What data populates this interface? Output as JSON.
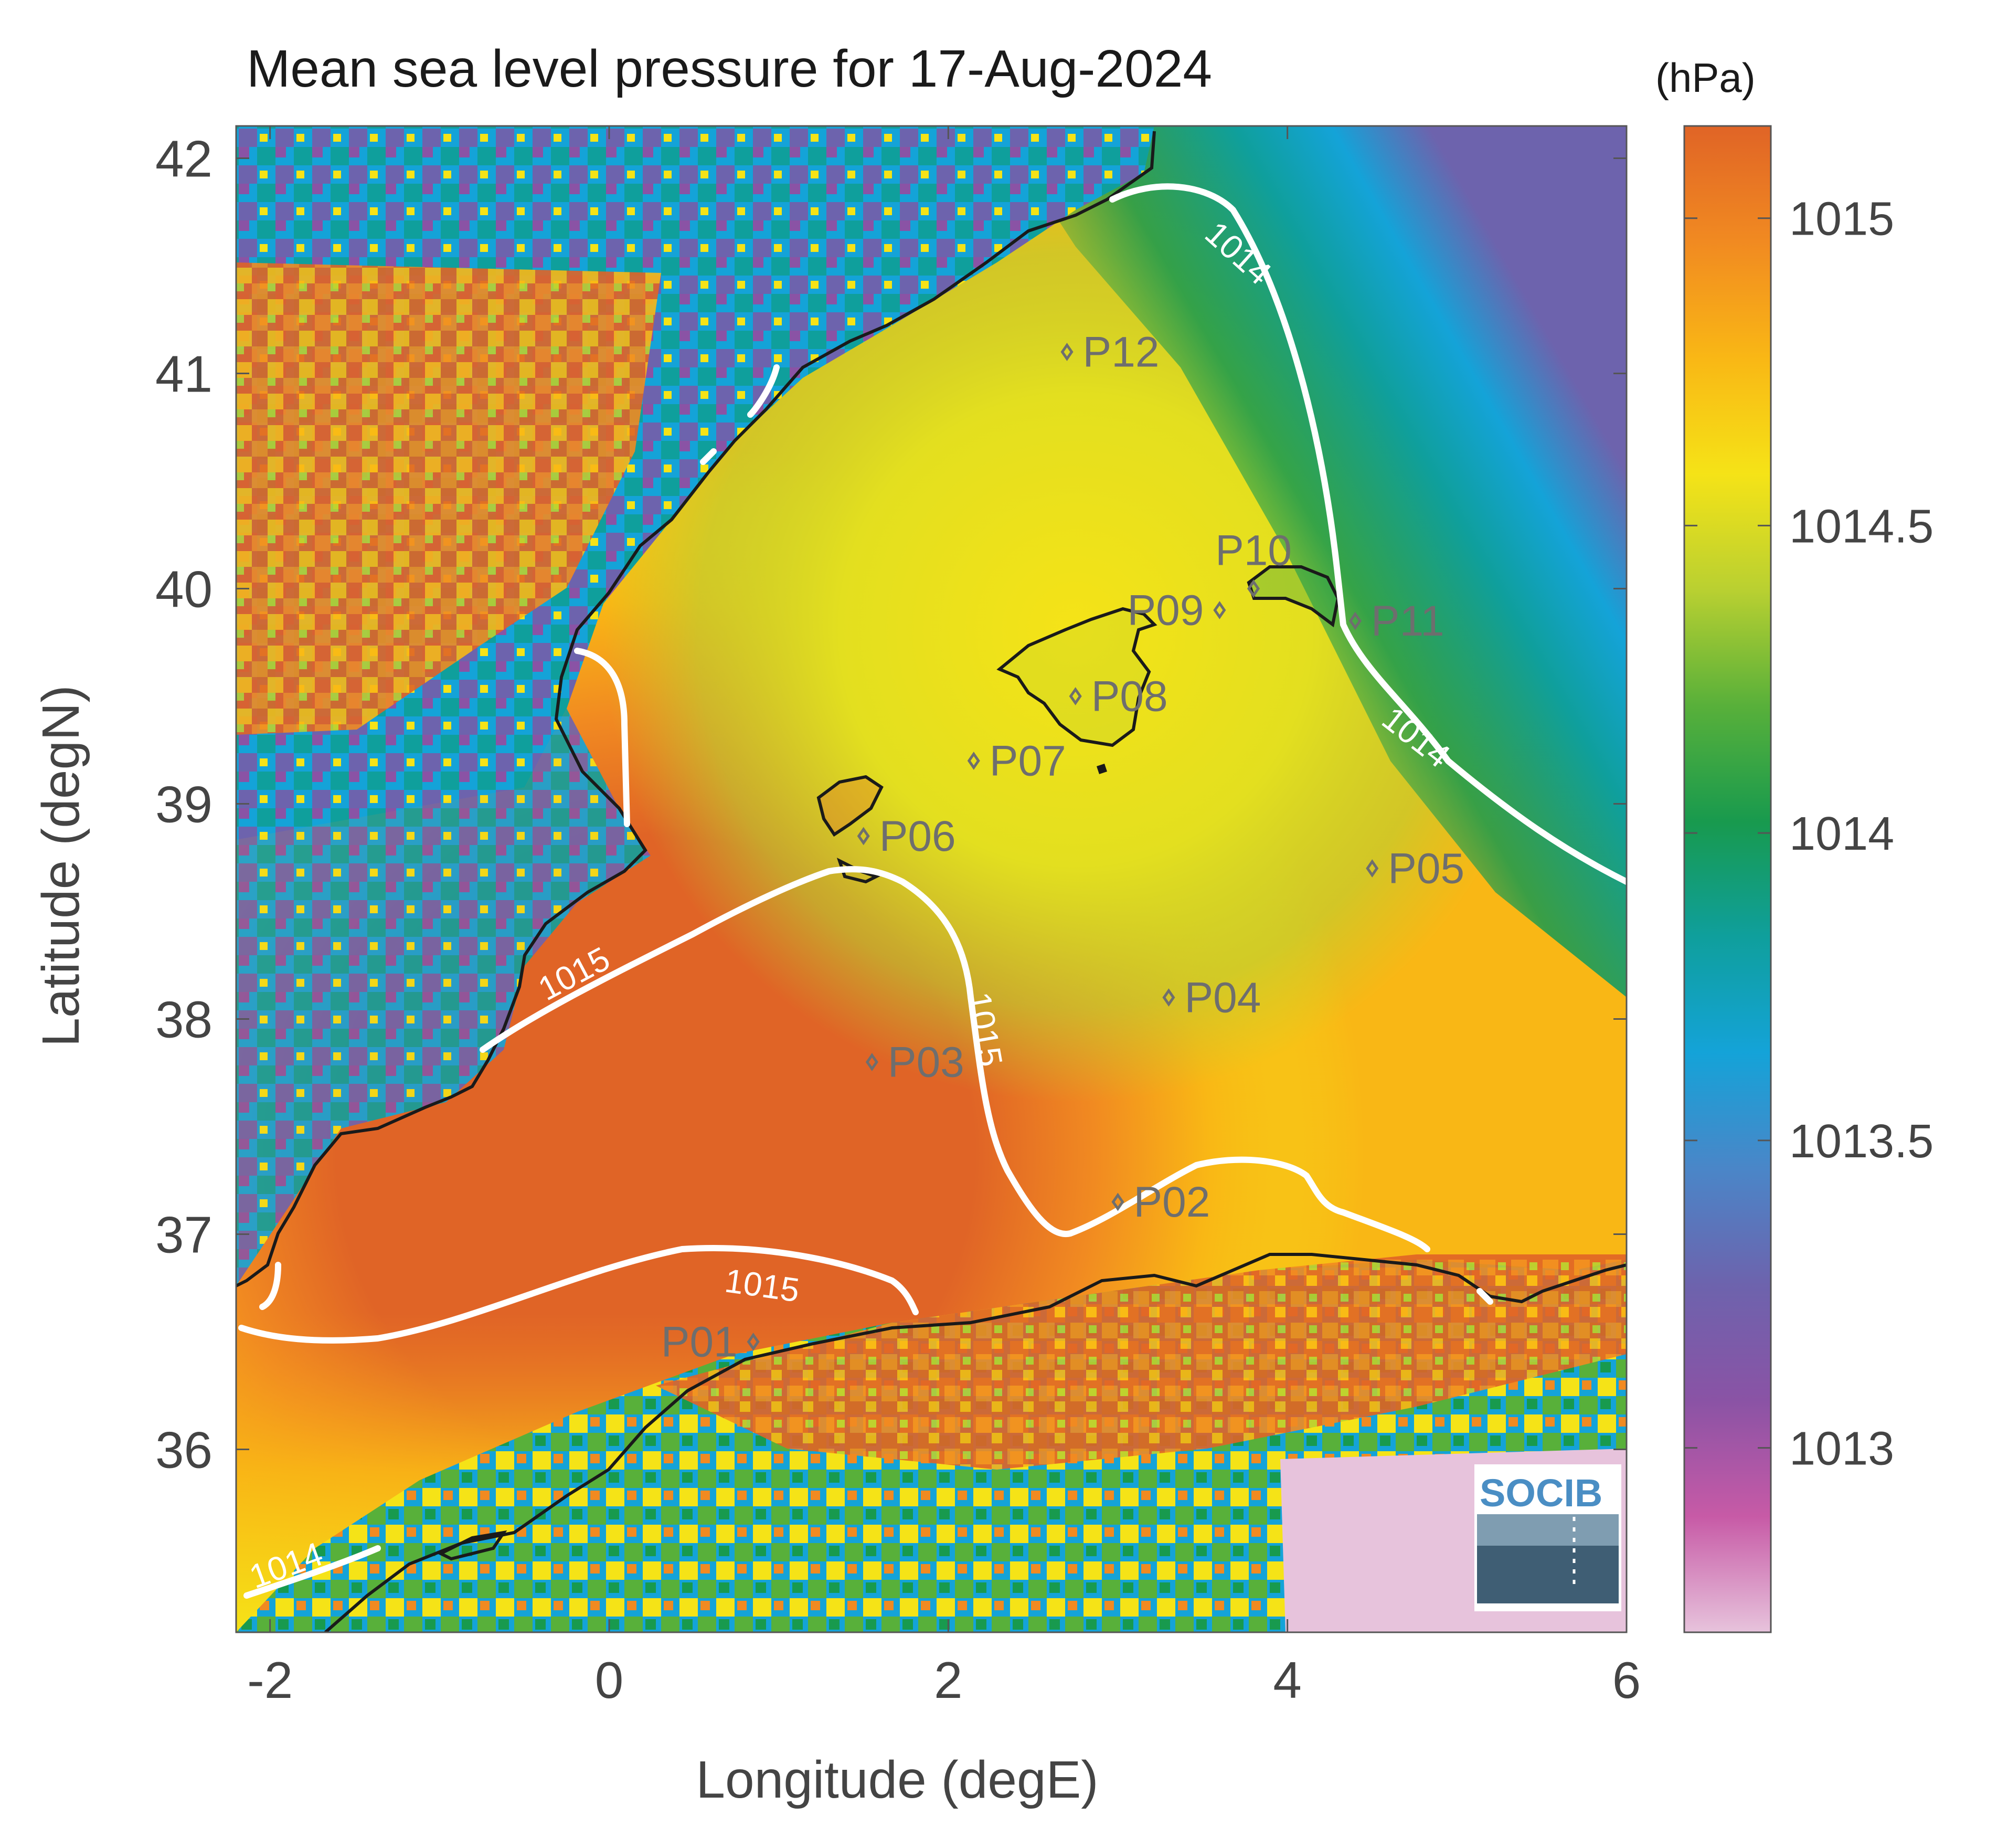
{
  "title": "Mean sea level pressure for 17-Aug-2024",
  "units": "(hPa)",
  "logo": "SOCIB",
  "colors": {
    "coast": "#1a1a1a",
    "contour": "#ffffff",
    "station": "#6e6e6e",
    "frame": "#555555",
    "scale": [
      "#e7c3dc",
      "#c75aa6",
      "#8a53a5",
      "#6d63ad",
      "#4a86c8",
      "#14a3d8",
      "#0f9f9c",
      "#189a4e",
      "#58b03a",
      "#b9d031",
      "#f5e317",
      "#f9b715",
      "#f18a21",
      "#e06426"
    ]
  },
  "chart_data": {
    "type": "heatmap",
    "title": "Mean sea level pressure for 17-Aug-2024",
    "xlabel": "Longitude (degE)",
    "ylabel": "Latitude (degN)",
    "xlim": [
      -2.2,
      6
    ],
    "ylim": [
      35.15,
      42.15
    ],
    "xticks": [
      -2,
      0,
      2,
      4,
      6
    ],
    "yticks": [
      36,
      37,
      38,
      39,
      40,
      41,
      42
    ],
    "colorbar": {
      "label": "(hPa)",
      "range": [
        1012.7,
        1015.15
      ],
      "ticks": [
        1013,
        1013.5,
        1014,
        1014.5,
        1015
      ]
    },
    "contour_labels": [
      {
        "value": "1014",
        "lon": 3.7,
        "lat": 41.55,
        "angle": 42
      },
      {
        "value": "1014",
        "lon": 4.75,
        "lat": 39.3,
        "angle": 38
      },
      {
        "value": "1014",
        "lon": -1.9,
        "lat": 35.45,
        "angle": -20
      },
      {
        "value": "1015",
        "lon": -0.2,
        "lat": 38.2,
        "angle": -28
      },
      {
        "value": "1015",
        "lon": 2.2,
        "lat": 37.95,
        "angle": 80
      },
      {
        "value": "1015",
        "lon": 0.9,
        "lat": 36.75,
        "angle": 8
      }
    ],
    "stations": [
      {
        "name": "P01",
        "lon": 0.85,
        "lat": 36.5,
        "label_side": "left"
      },
      {
        "name": "P02",
        "lon": 3.0,
        "lat": 37.15,
        "label_side": "right"
      },
      {
        "name": "P03",
        "lon": 1.55,
        "lat": 37.8,
        "label_side": "right"
      },
      {
        "name": "P04",
        "lon": 3.3,
        "lat": 38.1,
        "label_side": "right"
      },
      {
        "name": "P05",
        "lon": 4.5,
        "lat": 38.7,
        "label_side": "right"
      },
      {
        "name": "P06",
        "lon": 1.5,
        "lat": 38.85,
        "label_side": "right"
      },
      {
        "name": "P07",
        "lon": 2.15,
        "lat": 39.2,
        "label_side": "right"
      },
      {
        "name": "P08",
        "lon": 2.75,
        "lat": 39.5,
        "label_side": "right"
      },
      {
        "name": "P09",
        "lon": 3.6,
        "lat": 39.9,
        "label_side": "left"
      },
      {
        "name": "P10",
        "lon": 3.8,
        "lat": 40.0,
        "label_side": "above"
      },
      {
        "name": "P11",
        "lon": 4.4,
        "lat": 39.85,
        "label_side": "right"
      },
      {
        "name": "P12",
        "lon": 2.7,
        "lat": 41.1,
        "label_side": "right"
      }
    ]
  }
}
